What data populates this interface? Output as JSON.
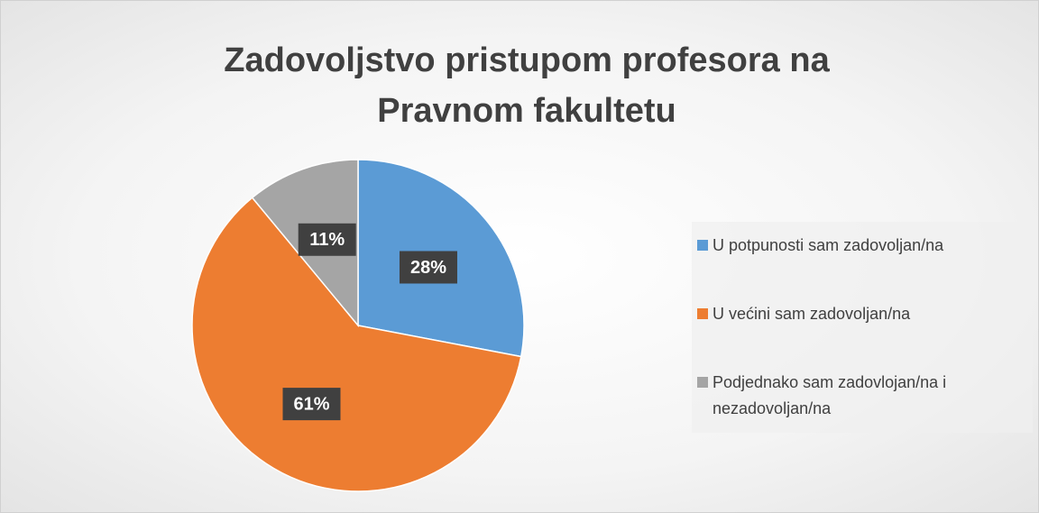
{
  "chart_data": {
    "type": "pie",
    "title": "Zadovoljstvo pristupom profesora na Pravnom fakultetu",
    "categories": [
      "U potpunosti sam zadovoljan/na",
      "U većini sam zadovoljan/na",
      "Podjednako sam zadovlojan/na i nezadovoljan/na"
    ],
    "values": [
      28,
      61,
      11
    ],
    "value_labels": [
      "28%",
      "61%",
      "11%"
    ],
    "colors": [
      "#5b9bd5",
      "#ed7d31",
      "#a5a5a5"
    ],
    "legend": "right"
  }
}
